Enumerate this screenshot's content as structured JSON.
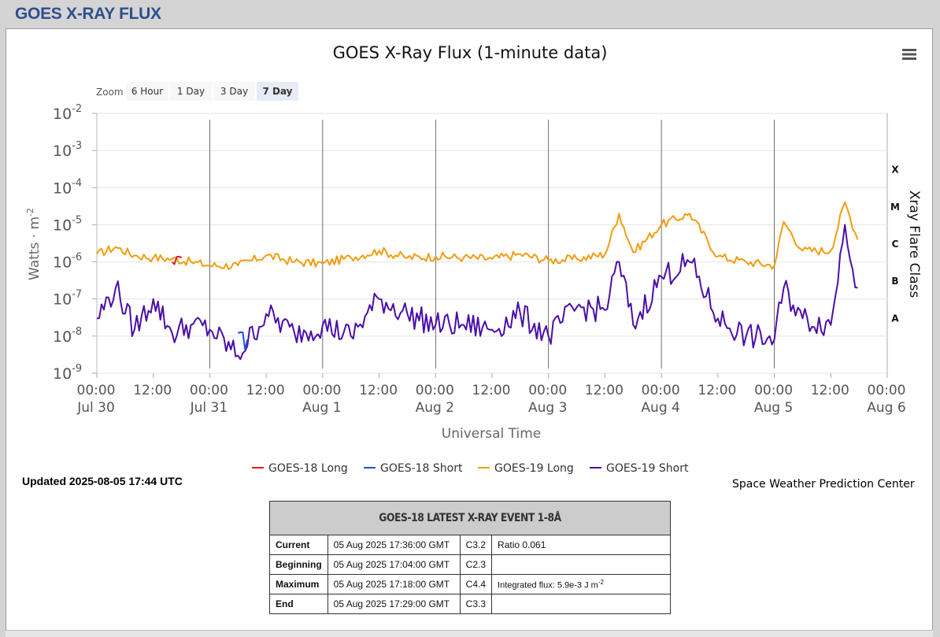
{
  "page": {
    "title": "GOES X-RAY FLUX"
  },
  "chart": {
    "title": "GOES X-Ray Flux (1-minute data)",
    "zoom_label": "Zoom",
    "zoom_buttons": [
      {
        "label": "6 Hour",
        "active": false
      },
      {
        "label": "1 Day",
        "active": false
      },
      {
        "label": "3 Day",
        "active": false
      },
      {
        "label": "7 Day",
        "active": true
      }
    ],
    "menu_icon": "hamburger-menu-icon",
    "credit": "Space Weather Prediction Center"
  },
  "chart_data": {
    "type": "line",
    "title": "GOES X-Ray Flux (1-minute data)",
    "xlabel": "Universal Time",
    "ylabel": "Watts · m",
    "ylabel_sup": "-2",
    "ylabel_right": "Xray Flare Class",
    "y_scale": "log",
    "ylim": [
      1e-09,
      0.01
    ],
    "y_ticks": [
      {
        "base": "10",
        "exp": "-2"
      },
      {
        "base": "10",
        "exp": "-3"
      },
      {
        "base": "10",
        "exp": "-4"
      },
      {
        "base": "10",
        "exp": "-5"
      },
      {
        "base": "10",
        "exp": "-6"
      },
      {
        "base": "10",
        "exp": "-7"
      },
      {
        "base": "10",
        "exp": "-8"
      },
      {
        "base": "10",
        "exp": "-9"
      }
    ],
    "xlim": [
      "2025-07-30 00:00",
      "2025-08-06 00:00"
    ],
    "x_ticks": [
      {
        "time": "00:00",
        "date": "Jul 30"
      },
      {
        "time": "12:00",
        "date": ""
      },
      {
        "time": "00:00",
        "date": "Jul 31"
      },
      {
        "time": "12:00",
        "date": ""
      },
      {
        "time": "00:00",
        "date": "Aug 1"
      },
      {
        "time": "12:00",
        "date": ""
      },
      {
        "time": "00:00",
        "date": "Aug 2"
      },
      {
        "time": "12:00",
        "date": ""
      },
      {
        "time": "00:00",
        "date": "Aug 3"
      },
      {
        "time": "12:00",
        "date": ""
      },
      {
        "time": "00:00",
        "date": "Aug 4"
      },
      {
        "time": "12:00",
        "date": ""
      },
      {
        "time": "00:00",
        "date": "Aug 5"
      },
      {
        "time": "12:00",
        "date": ""
      },
      {
        "time": "00:00",
        "date": "Aug 6"
      }
    ],
    "flare_classes": [
      "X",
      "M",
      "C",
      "B",
      "A"
    ],
    "legend": [
      {
        "name": "GOES-18 Long",
        "color": "#e31a1c"
      },
      {
        "name": "GOES-18 Short",
        "color": "#1f4fe0"
      },
      {
        "name": "GOES-19 Long",
        "color": "#f39c12"
      },
      {
        "name": "GOES-19 Short",
        "color": "#4b0fa8"
      }
    ],
    "grid": true,
    "series": [
      {
        "name": "GOES-19 Long",
        "color": "#f39c12",
        "x": [
          "2025-07-30 00:00",
          "2025-07-30 04:00",
          "2025-07-30 08:00",
          "2025-07-30 12:00",
          "2025-07-30 16:00",
          "2025-07-30 20:00",
          "2025-07-31 00:00",
          "2025-07-31 06:00",
          "2025-07-31 12:00",
          "2025-07-31 18:00",
          "2025-08-01 00:00",
          "2025-08-01 06:00",
          "2025-08-01 12:00",
          "2025-08-01 18:00",
          "2025-08-02 00:00",
          "2025-08-02 06:00",
          "2025-08-02 12:00",
          "2025-08-02 18:00",
          "2025-08-03 00:00",
          "2025-08-03 06:00",
          "2025-08-03 12:00",
          "2025-08-03 15:00",
          "2025-08-03 18:00",
          "2025-08-04 00:00",
          "2025-08-04 06:00",
          "2025-08-04 12:00",
          "2025-08-04 18:00",
          "2025-08-05 00:00",
          "2025-08-05 02:00",
          "2025-08-05 06:00",
          "2025-08-05 12:00",
          "2025-08-05 15:00",
          "2025-08-05 17:44"
        ],
        "values": [
          1.6e-06,
          2.5e-06,
          1.5e-06,
          1.3e-06,
          1.2e-06,
          1e-06,
          8e-07,
          8e-07,
          1.5e-06,
          1e-06,
          9e-07,
          1.3e-06,
          2e-06,
          1.3e-06,
          1.4e-06,
          1.3e-06,
          1.2e-06,
          1.6e-06,
          1.1e-06,
          1.2e-06,
          1.6e-06,
          2e-05,
          1.8e-06,
          1e-05,
          2e-05,
          1.4e-06,
          1e-06,
          8e-07,
          1.2e-05,
          2e-06,
          2e-06,
          4e-05,
          4e-06
        ]
      },
      {
        "name": "GOES-19 Short",
        "color": "#4b0fa8",
        "x": [
          "2025-07-30 00:00",
          "2025-07-30 04:00",
          "2025-07-30 08:00",
          "2025-07-30 12:00",
          "2025-07-30 16:00",
          "2025-07-30 20:00",
          "2025-07-31 00:00",
          "2025-07-31 06:00",
          "2025-07-31 12:00",
          "2025-07-31 18:00",
          "2025-08-01 00:00",
          "2025-08-01 06:00",
          "2025-08-01 12:00",
          "2025-08-01 18:00",
          "2025-08-02 00:00",
          "2025-08-02 06:00",
          "2025-08-02 12:00",
          "2025-08-02 18:00",
          "2025-08-03 00:00",
          "2025-08-03 06:00",
          "2025-08-03 12:00",
          "2025-08-03 15:00",
          "2025-08-03 18:00",
          "2025-08-04 00:00",
          "2025-08-04 06:00",
          "2025-08-04 12:00",
          "2025-08-04 18:00",
          "2025-08-05 00:00",
          "2025-08-05 02:00",
          "2025-08-05 06:00",
          "2025-08-05 12:00",
          "2025-08-05 15:00",
          "2025-08-05 17:44"
        ],
        "values": [
          3e-08,
          2e-07,
          1.5e-08,
          1e-07,
          1.2e-08,
          2e-08,
          1.5e-08,
          3e-09,
          4e-08,
          1.2e-08,
          2e-08,
          1e-08,
          1e-07,
          4e-08,
          2e-08,
          2e-08,
          1.5e-08,
          4e-08,
          1e-08,
          6e-08,
          5e-08,
          1e-06,
          2e-08,
          4e-07,
          1e-06,
          3e-08,
          1e-08,
          8e-09,
          2e-07,
          3e-08,
          2e-08,
          1e-05,
          2e-07
        ]
      },
      {
        "name": "GOES-18 Long",
        "color": "#e31a1c",
        "x": [
          "2025-07-30 16:00",
          "2025-07-30 18:00"
        ],
        "values": [
          1e-06,
          1.3e-06
        ]
      },
      {
        "name": "GOES-18 Short",
        "color": "#1f4fe0",
        "x": [
          "2025-07-31 06:00",
          "2025-07-31 08:00"
        ],
        "values": [
          1.2e-08,
          8e-09
        ]
      }
    ]
  },
  "status": {
    "updated": "Updated 2025-08-05 17:44 UTC",
    "credit": "Space Weather Prediction Center"
  },
  "event_table": {
    "title": "GOES-18 LATEST X-RAY EVENT 1-8Å",
    "rows": [
      {
        "label": "Current",
        "time": "05 Aug 2025 17:36:00 GMT",
        "class": "C3.2",
        "extra": "Ratio 0.061",
        "extra_sup": ""
      },
      {
        "label": "Beginning",
        "time": "05 Aug 2025 17:04:00 GMT",
        "class": "C2.3",
        "extra": "",
        "extra_sup": ""
      },
      {
        "label": "Maximum",
        "time": "05 Aug 2025 17:18:00 GMT",
        "class": "C4.4",
        "extra": "Integrated flux: 5.9e-3 J m",
        "extra_sup": "-2"
      },
      {
        "label": "End",
        "time": "05 Aug 2025 17:29:00 GMT",
        "class": "C3.3",
        "extra": "",
        "extra_sup": ""
      }
    ]
  }
}
